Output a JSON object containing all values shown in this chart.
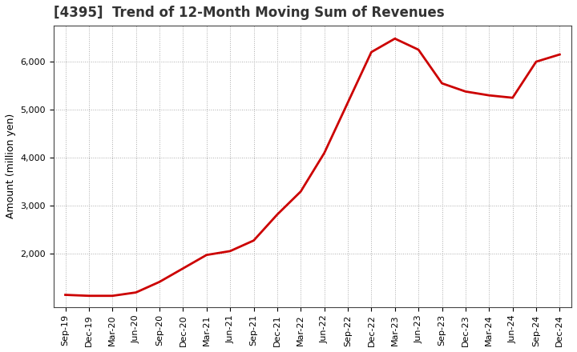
{
  "title": "[4395]  Trend of 12-Month Moving Sum of Revenues",
  "ylabel": "Amount (million yen)",
  "line_color": "#cc0000",
  "line_width": 2.0,
  "background_color": "#ffffff",
  "grid_color": "#aaaaaa",
  "ylim": [
    900,
    6750
  ],
  "yticks": [
    2000,
    3000,
    4000,
    5000,
    6000
  ],
  "x_labels": [
    "Sep-19",
    "Dec-19",
    "Mar-20",
    "Jun-20",
    "Sep-20",
    "Dec-20",
    "Mar-21",
    "Jun-21",
    "Sep-21",
    "Dec-21",
    "Mar-22",
    "Jun-22",
    "Sep-22",
    "Dec-22",
    "Mar-23",
    "Jun-23",
    "Sep-23",
    "Dec-23",
    "Mar-24",
    "Jun-24",
    "Sep-24",
    "Dec-24"
  ],
  "data_points": {
    "Sep-19": 1150,
    "Dec-19": 1130,
    "Mar-20": 1130,
    "Jun-20": 1200,
    "Sep-20": 1420,
    "Dec-20": 1700,
    "Mar-21": 1980,
    "Jun-21": 2060,
    "Sep-21": 2280,
    "Dec-21": 2820,
    "Mar-22": 3300,
    "Jun-22": 4100,
    "Sep-22": 5150,
    "Dec-22": 6200,
    "Mar-23": 6480,
    "Jun-23": 6250,
    "Sep-23": 5550,
    "Dec-23": 5380,
    "Mar-24": 5300,
    "Jun-24": 5250,
    "Sep-24": 6000,
    "Dec-24": 6150
  },
  "title_fontsize": 12,
  "title_color": "#333333",
  "ylabel_fontsize": 9,
  "tick_fontsize": 8
}
